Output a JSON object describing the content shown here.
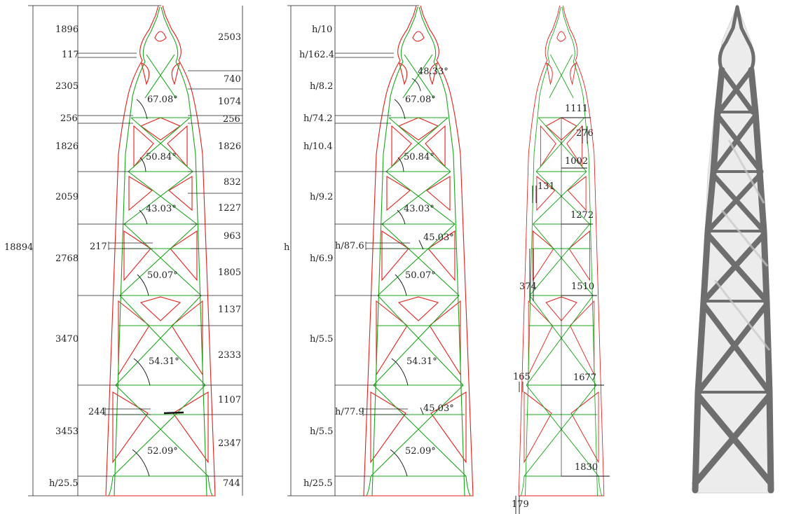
{
  "colors": {
    "outline": "#e0201c",
    "members": "#1aa51a",
    "dims": "#222222",
    "render_dark": "#6e6e6e",
    "render_light": "#d2d2d2"
  },
  "panel_a": {
    "total_height": "18894",
    "left_labels": [
      "1896",
      "117",
      "2305",
      "256",
      "1826",
      "2059",
      "217",
      "2768",
      "3470",
      "244",
      "3453",
      "h/25.5"
    ],
    "right_labels": [
      "2503",
      "740",
      "1074",
      "256",
      "1826",
      "832",
      "1227",
      "963",
      "1805",
      "1137",
      "2333",
      "1107",
      "2347",
      "744"
    ],
    "angles": [
      "67.08°",
      "50.84°",
      "43.03°",
      "50.07°",
      "54.31°",
      "52.09°"
    ]
  },
  "panel_b": {
    "total_height": "h",
    "left_labels": [
      "h/10",
      "h/162.4",
      "h/8.2",
      "h/74.2",
      "h/10.4",
      "h/9.2",
      "h/87.6",
      "h/6.9",
      "h/5.5",
      "h/77.9",
      "h/5.5",
      "h/25.5"
    ],
    "angles": [
      "48.33°",
      "67.08°",
      "50.84°",
      "43.03°",
      "45.03°",
      "50.07°",
      "54.31°",
      "45.03°",
      "52.09°"
    ]
  },
  "panel_c": {
    "widths": [
      "1111",
      "1002",
      "1272",
      "1510",
      "1677",
      "1830"
    ],
    "thickness": [
      "276",
      "131",
      "374",
      "165",
      "179"
    ]
  }
}
